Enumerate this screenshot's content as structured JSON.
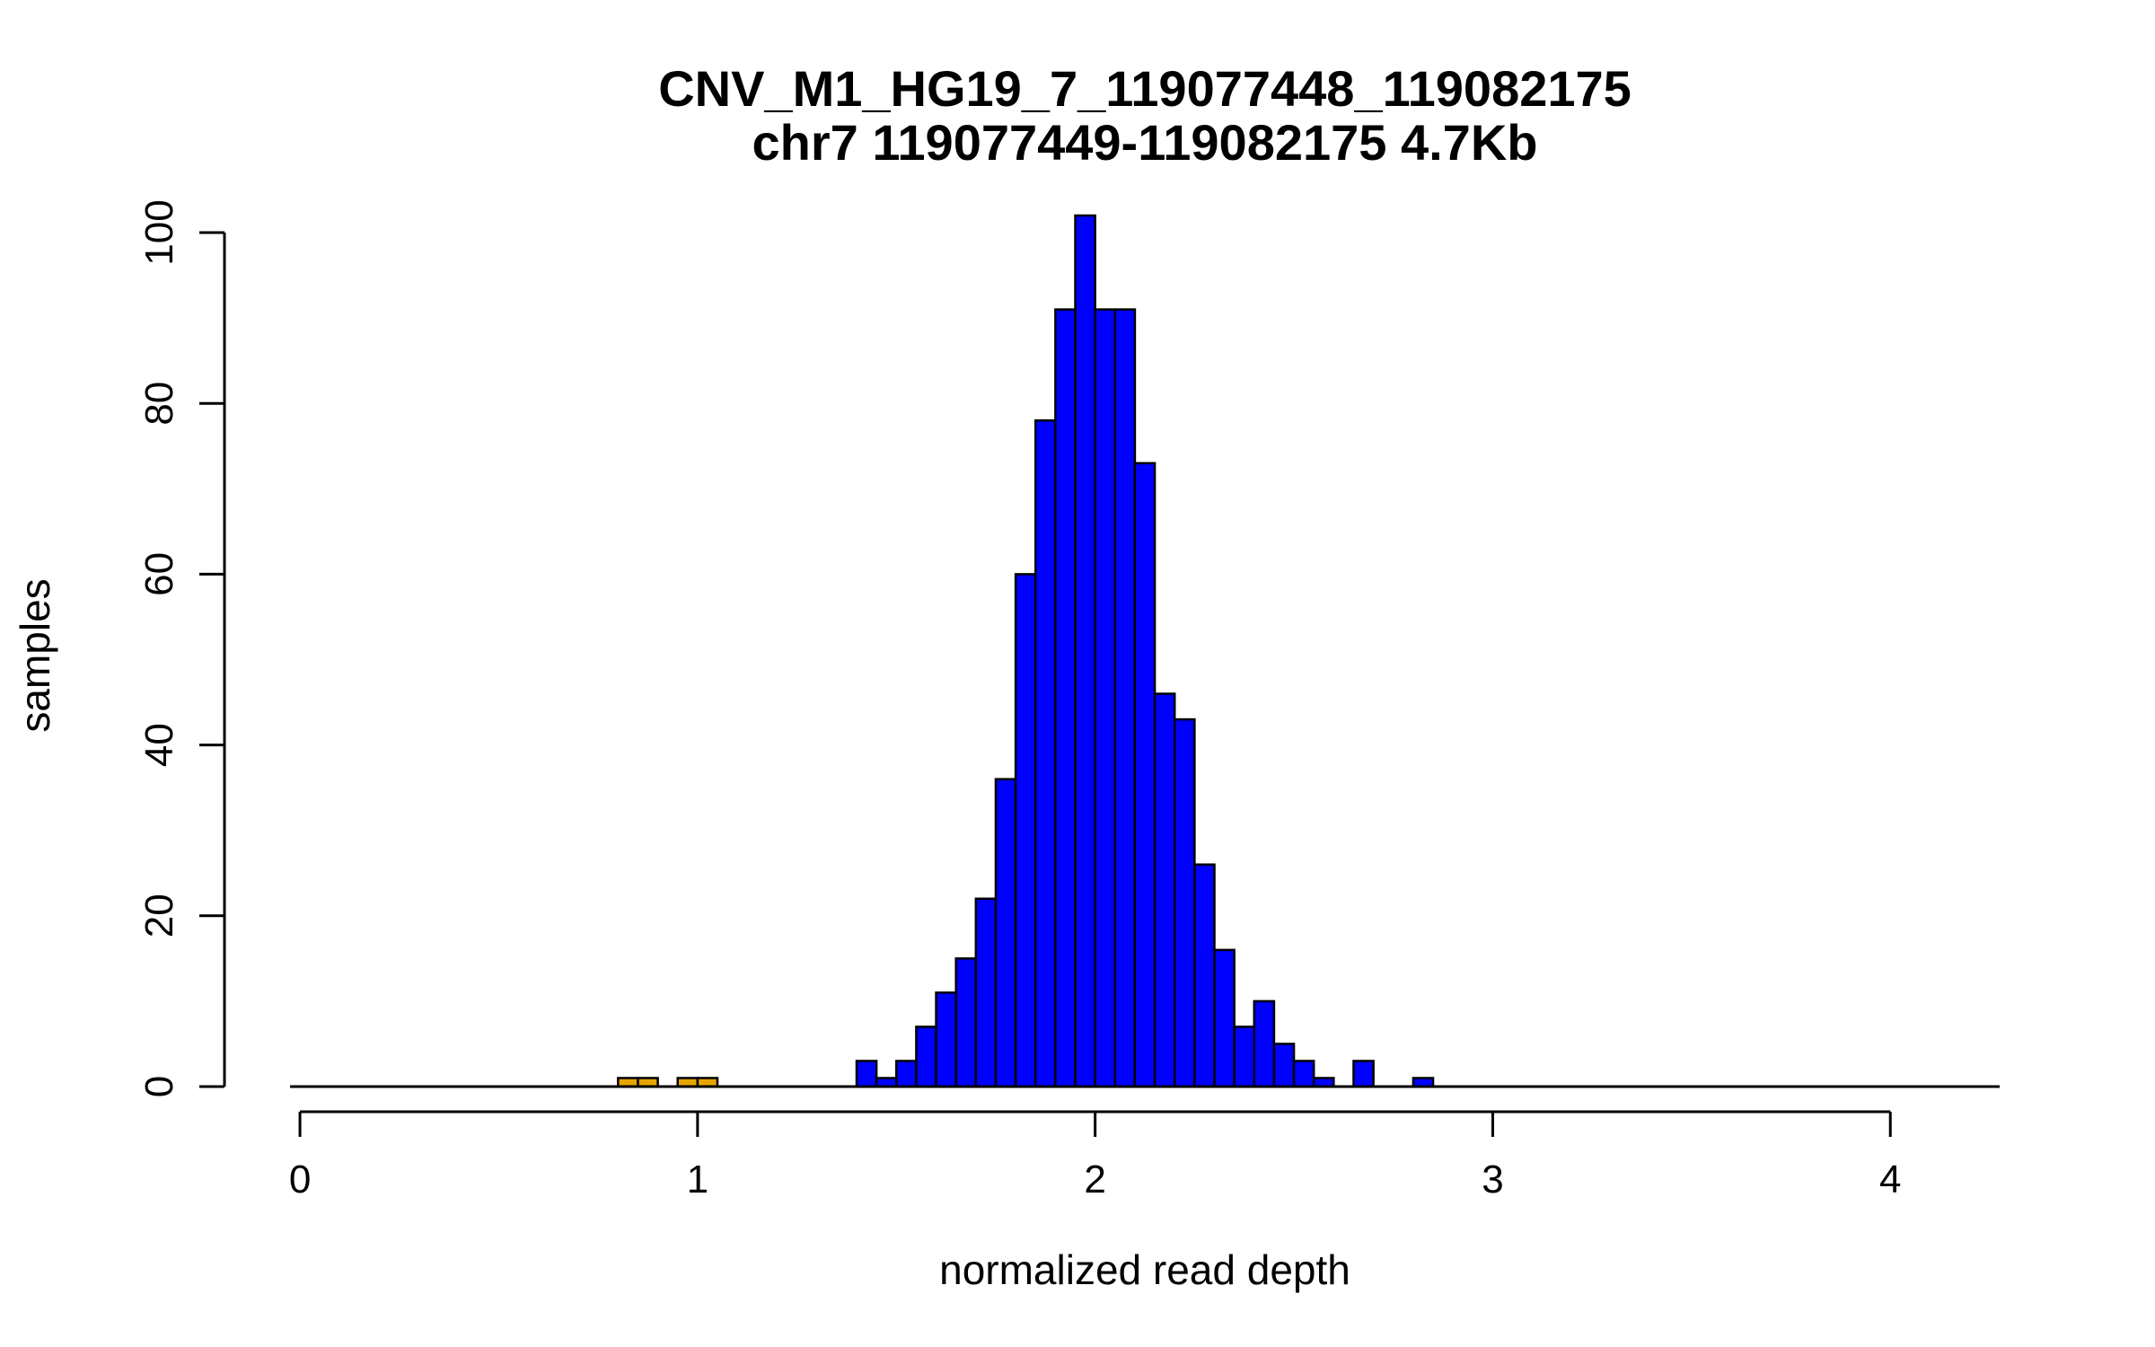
{
  "chart_data": {
    "type": "bar",
    "title": "CNV_M1_HG19_7_119077448_119082175",
    "subtitle": "chr7 119077449-119082175 4.7Kb",
    "xlabel": "normalized read depth",
    "ylabel": "samples",
    "xlim": [
      -0.025,
      4.275
    ],
    "ylim": [
      0,
      102
    ],
    "x_ticks": [
      0,
      1,
      2,
      3,
      4
    ],
    "x_tick_labels": [
      "0",
      "1",
      "2",
      "3",
      "4"
    ],
    "y_ticks": [
      0,
      20,
      40,
      60,
      80,
      100
    ],
    "y_tick_labels": [
      "0",
      "20",
      "40",
      "60",
      "80",
      "100"
    ],
    "bin_width": 0.05,
    "bin_start": 0.0,
    "grid": false,
    "colors": {
      "main": "#0000ff",
      "highlight": "#e6a500",
      "edge": "#000000"
    },
    "series": [
      {
        "values": [
          1,
          1
        ],
        "bin_starts": [
          0.8,
          0.85
        ],
        "color": "#e6a500"
      },
      {
        "values": [
          1,
          1
        ],
        "bin_starts": [
          0.95,
          1.0
        ],
        "color": "#e6a500"
      },
      {
        "values": [
          3,
          1,
          3,
          7,
          11,
          15,
          22,
          36,
          60,
          78,
          91,
          102,
          91,
          91,
          73,
          46,
          43,
          26,
          16,
          7,
          10,
          5,
          3,
          1,
          0,
          3,
          0,
          0,
          1
        ],
        "bin_starts": [
          1.4,
          1.45,
          1.5,
          1.55,
          1.6,
          1.65,
          1.7,
          1.75,
          1.8,
          1.85,
          1.9,
          1.95,
          2.0,
          2.05,
          2.1,
          2.15,
          2.2,
          2.25,
          2.3,
          2.35,
          2.4,
          2.45,
          2.5,
          2.55,
          2.6,
          2.65,
          2.7,
          2.75,
          2.8
        ],
        "color": "#0000ff"
      }
    ]
  }
}
